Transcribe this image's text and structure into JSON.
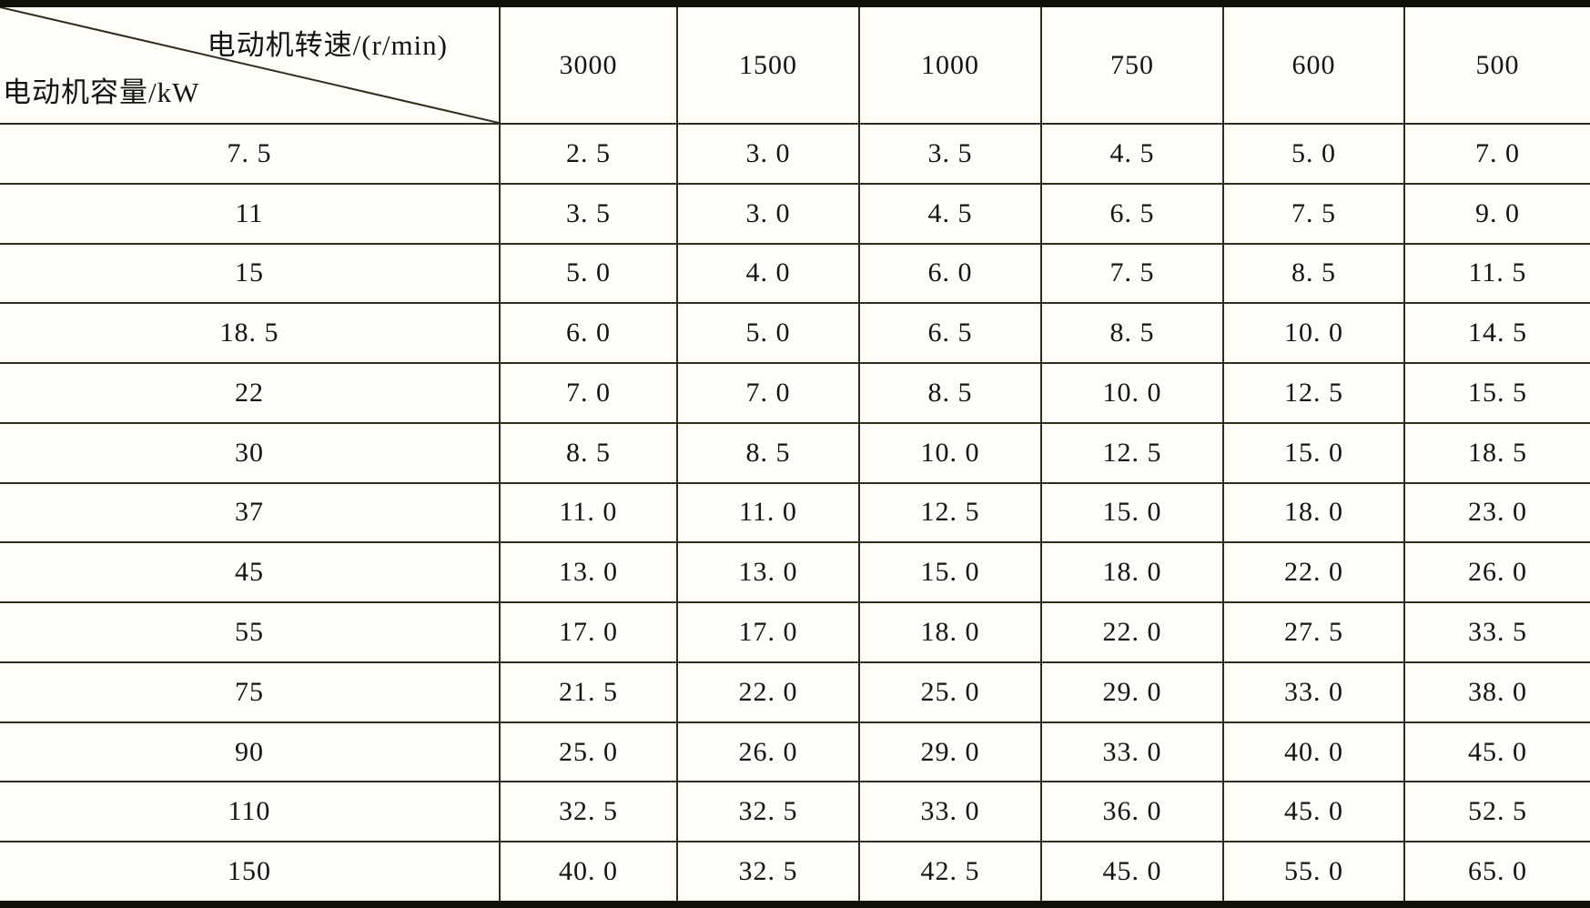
{
  "page": {
    "background": "#fefdf7",
    "line_color": "#2f2d1d",
    "thick_bar_color": "#12120a",
    "text_color": "#141410"
  },
  "table": {
    "corner": {
      "top_right_label": "电动机转速/(r/min)",
      "bottom_left_label": "电动机容量/kW"
    },
    "columns": [
      "3000",
      "1500",
      "1000",
      "750",
      "600",
      "500"
    ],
    "rows": [
      {
        "capacity": "7. 5",
        "values": [
          "2. 5",
          "3. 0",
          "3. 5",
          "4. 5",
          "5. 0",
          "7. 0"
        ]
      },
      {
        "capacity": "11",
        "values": [
          "3. 5",
          "3. 0",
          "4. 5",
          "6. 5",
          "7. 5",
          "9. 0"
        ]
      },
      {
        "capacity": "15",
        "values": [
          "5. 0",
          "4. 0",
          "6. 0",
          "7. 5",
          "8. 5",
          "11. 5"
        ]
      },
      {
        "capacity": "18. 5",
        "values": [
          "6. 0",
          "5. 0",
          "6. 5",
          "8. 5",
          "10. 0",
          "14. 5"
        ]
      },
      {
        "capacity": "22",
        "values": [
          "7. 0",
          "7. 0",
          "8. 5",
          "10. 0",
          "12. 5",
          "15. 5"
        ]
      },
      {
        "capacity": "30",
        "values": [
          "8. 5",
          "8. 5",
          "10. 0",
          "12. 5",
          "15. 0",
          "18. 5"
        ]
      },
      {
        "capacity": "37",
        "values": [
          "11. 0",
          "11. 0",
          "12. 5",
          "15. 0",
          "18. 0",
          "23. 0"
        ]
      },
      {
        "capacity": "45",
        "values": [
          "13. 0",
          "13. 0",
          "15. 0",
          "18. 0",
          "22. 0",
          "26. 0"
        ]
      },
      {
        "capacity": "55",
        "values": [
          "17. 0",
          "17. 0",
          "18. 0",
          "22. 0",
          "27. 5",
          "33. 5"
        ]
      },
      {
        "capacity": "75",
        "values": [
          "21. 5",
          "22. 0",
          "25. 0",
          "29. 0",
          "33. 0",
          "38. 0"
        ]
      },
      {
        "capacity": "90",
        "values": [
          "25. 0",
          "26. 0",
          "29. 0",
          "33. 0",
          "40. 0",
          "45. 0"
        ]
      },
      {
        "capacity": "110",
        "values": [
          "32. 5",
          "32. 5",
          "33. 0",
          "36. 0",
          "45. 0",
          "52. 5"
        ]
      },
      {
        "capacity": "150",
        "values": [
          "40. 0",
          "32. 5",
          "42. 5",
          "45. 0",
          "55. 0",
          "65. 0"
        ]
      }
    ]
  }
}
